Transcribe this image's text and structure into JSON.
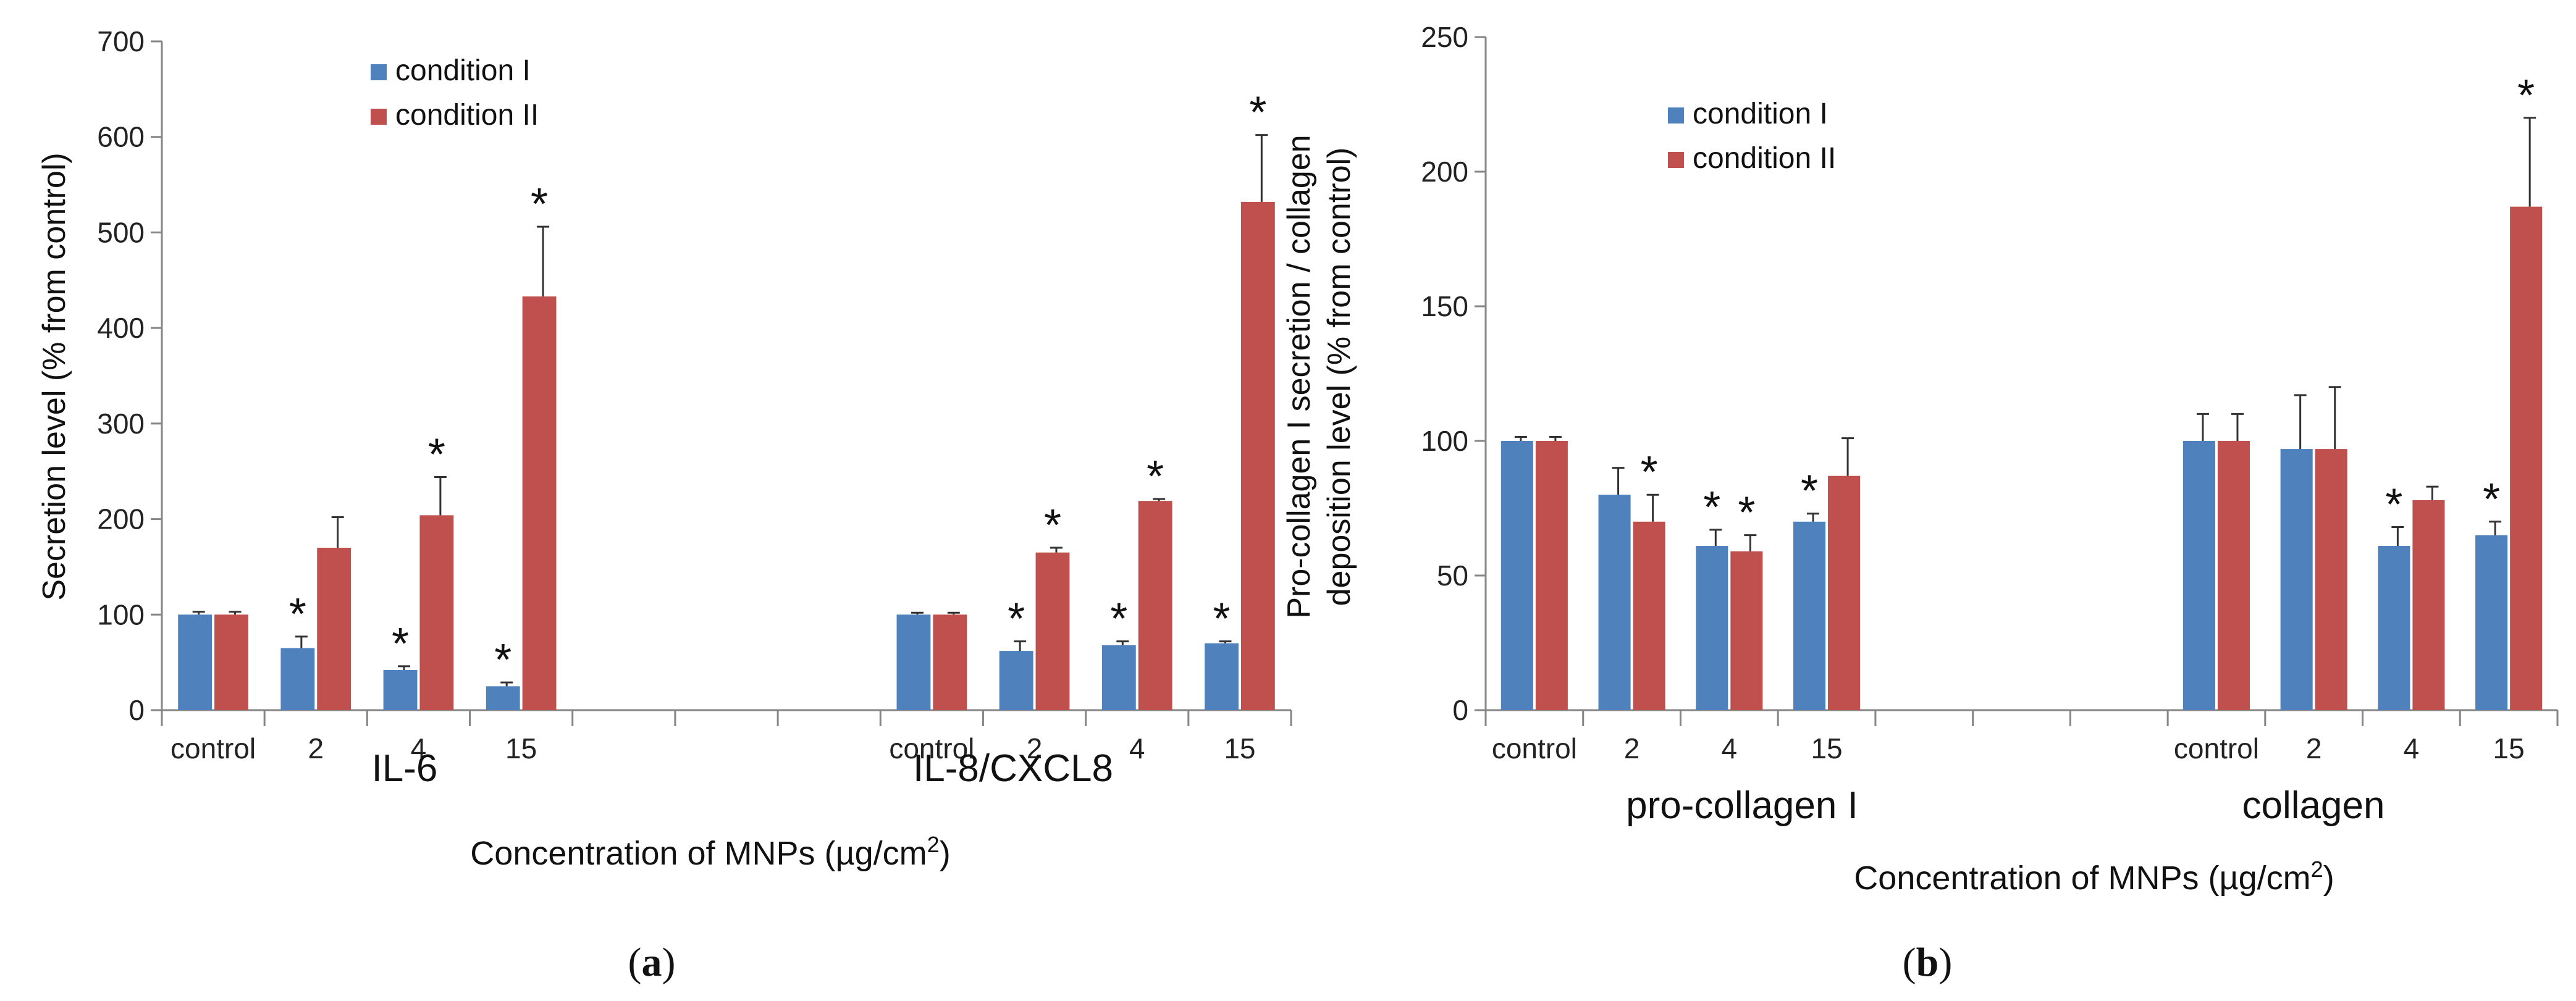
{
  "chart_data": [
    {
      "type": "bar",
      "panel_label": "a",
      "title": "",
      "xlabel": "Concentration of MNPs (µg/cm",
      "xlabel_sup": "2",
      "xlabel_end": ")",
      "ylabel": "Secretion level (% from control)",
      "ylim": [
        0,
        700
      ],
      "yticks": [
        0,
        100,
        200,
        300,
        400,
        500,
        600,
        700
      ],
      "legend": [
        "condition I",
        "condition II"
      ],
      "legend_position": "top-left",
      "colors": {
        "condition I": "#4f81bd",
        "condition II": "#c0504d"
      },
      "groups": [
        {
          "name": "IL-6",
          "categories": [
            "control",
            "2",
            "4",
            "15"
          ],
          "series": [
            {
              "name": "condition I",
              "values": [
                100,
                65,
                42,
                25
              ],
              "errors": [
                3,
                12,
                4,
                4
              ],
              "significant": [
                false,
                true,
                true,
                true
              ]
            },
            {
              "name": "condition II",
              "values": [
                100,
                170,
                204,
                433
              ],
              "errors": [
                3,
                32,
                40,
                73
              ],
              "significant": [
                false,
                false,
                true,
                true
              ]
            }
          ]
        },
        {
          "name": "IL-8/CXCL8",
          "categories": [
            "control",
            "2",
            "4",
            "15"
          ],
          "series": [
            {
              "name": "condition I",
              "values": [
                100,
                62,
                68,
                70
              ],
              "errors": [
                2,
                10,
                4,
                2
              ],
              "significant": [
                false,
                true,
                true,
                true
              ]
            },
            {
              "name": "condition II",
              "values": [
                100,
                165,
                219,
                532
              ],
              "errors": [
                2,
                5,
                2,
                70
              ],
              "significant": [
                false,
                true,
                true,
                true
              ]
            }
          ]
        }
      ],
      "significance_marker": "*"
    },
    {
      "type": "bar",
      "panel_label": "b",
      "title": "",
      "xlabel": "Concentration of MNPs (µg/cm",
      "xlabel_sup": "2",
      "xlabel_end": ")",
      "ylabel": "Pro-collagen I secretion / collagen",
      "ylabel_line2": "deposition level (% from control)",
      "ylim": [
        0,
        250
      ],
      "yticks": [
        0,
        50,
        100,
        150,
        200,
        250
      ],
      "legend": [
        "condition I",
        "condition II"
      ],
      "legend_position": "top-left",
      "colors": {
        "condition I": "#4f81bd",
        "condition II": "#c0504d"
      },
      "groups": [
        {
          "name": "pro-collagen  I",
          "categories": [
            "control",
            "2",
            "4",
            "15"
          ],
          "series": [
            {
              "name": "condition I",
              "values": [
                100,
                80,
                61,
                70
              ],
              "errors": [
                1.5,
                10,
                6,
                3
              ],
              "significant": [
                false,
                false,
                true,
                true
              ]
            },
            {
              "name": "condition II",
              "values": [
                100,
                70,
                59,
                87
              ],
              "errors": [
                1.5,
                10,
                6,
                14
              ],
              "significant": [
                false,
                true,
                true,
                false
              ]
            }
          ]
        },
        {
          "name": "collagen",
          "categories": [
            "control",
            "2",
            "4",
            "15"
          ],
          "series": [
            {
              "name": "condition I",
              "values": [
                100,
                97,
                61,
                65
              ],
              "errors": [
                10,
                20,
                7,
                5
              ],
              "significant": [
                false,
                false,
                true,
                true
              ]
            },
            {
              "name": "condition II",
              "values": [
                100,
                97,
                78,
                187
              ],
              "errors": [
                10,
                23,
                5,
                33
              ],
              "significant": [
                false,
                false,
                false,
                true
              ]
            }
          ]
        }
      ],
      "significance_marker": "*"
    }
  ]
}
